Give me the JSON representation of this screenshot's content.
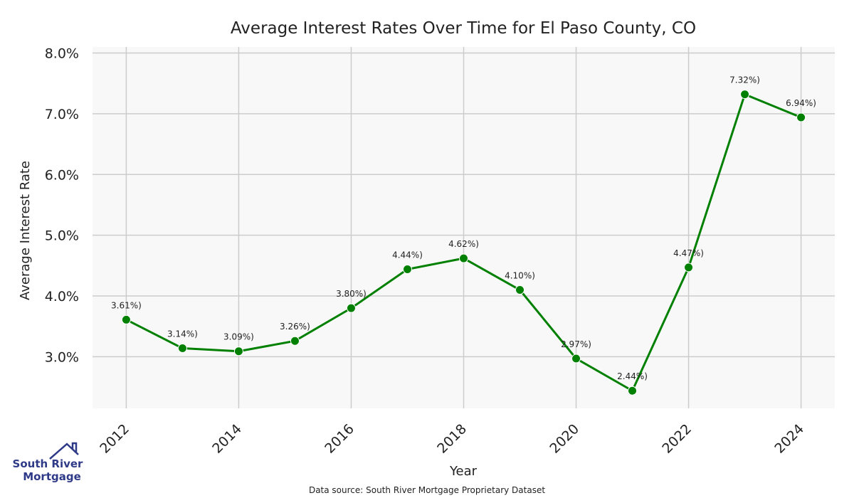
{
  "chart_data": {
    "type": "line",
    "title": "Average Interest Rates Over Time for El Paso County, CO",
    "xlabel": "Year",
    "ylabel": "Average Interest Rate",
    "x": [
      2012,
      2013,
      2014,
      2015,
      2016,
      2017,
      2018,
      2019,
      2020,
      2021,
      2022,
      2023,
      2024
    ],
    "values": [
      3.61,
      3.14,
      3.09,
      3.26,
      3.8,
      4.44,
      4.62,
      4.1,
      2.97,
      2.44,
      4.47,
      7.32,
      6.94
    ],
    "data_labels": [
      "3.61%)",
      "3.14%)",
      "3.09%)",
      "3.26%)",
      "3.80%)",
      "4.44%)",
      "4.62%)",
      "4.10%)",
      "2.97%)",
      "2.44%)",
      "4.47%)",
      "7.32%)",
      "6.94%)"
    ],
    "x_ticks": [
      "2012",
      "2014",
      "2016",
      "2018",
      "2020",
      "2022",
      "2024"
    ],
    "y_ticks": [
      "3.0%",
      "4.0%",
      "5.0%",
      "6.0%",
      "7.0%",
      "8.0%"
    ],
    "y_tick_values": [
      3,
      4,
      5,
      6,
      7,
      8
    ],
    "x_tick_values": [
      2012,
      2014,
      2016,
      2018,
      2020,
      2022,
      2024
    ],
    "xlim": [
      2011.4,
      2024.6
    ],
    "ylim": [
      2.15,
      8.1
    ],
    "grid": true,
    "line_color": "#008000",
    "marker_color": "#008000",
    "plot_background": "#f8f8f8",
    "grid_color": "#cccccc"
  },
  "footer": {
    "source_note": "Data source: South River Mortgage Proprietary Dataset"
  },
  "logo": {
    "line1": "South River",
    "line2": "Mortgage",
    "color": "#2e3a87"
  }
}
